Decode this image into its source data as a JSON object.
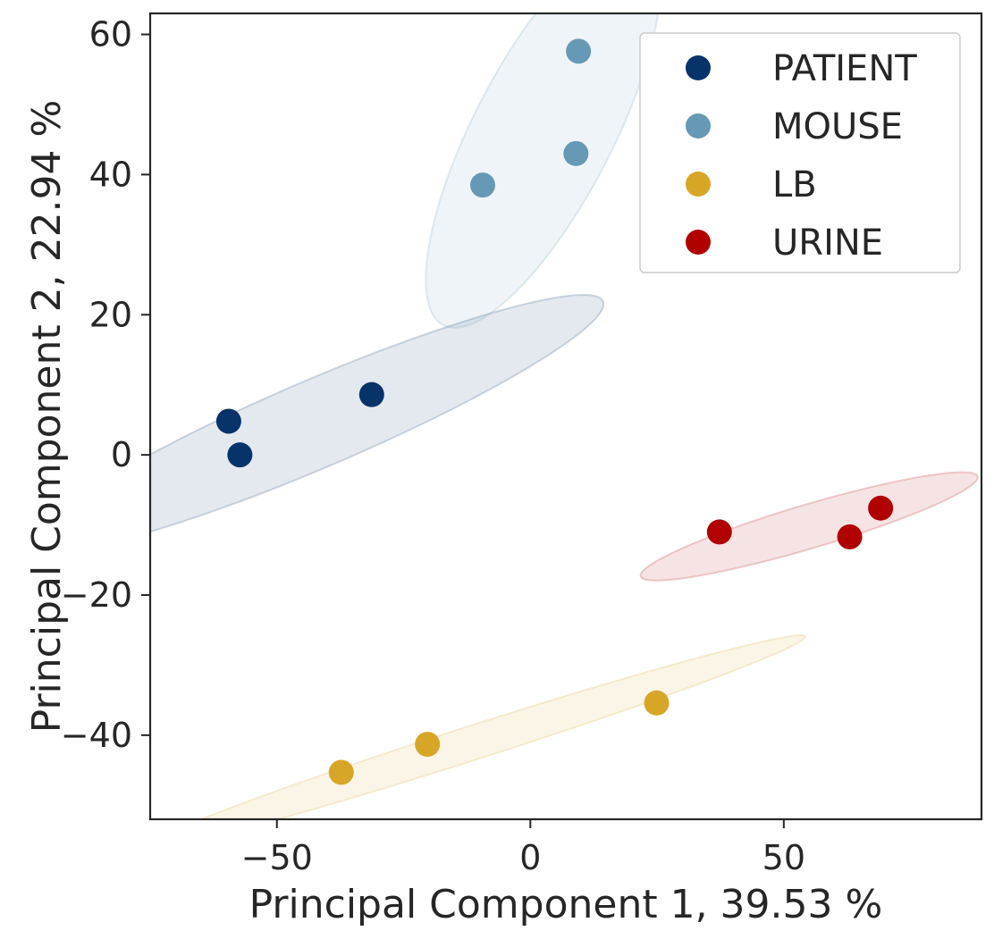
{
  "chart_data": {
    "type": "scatter",
    "title": "",
    "xlabel": "Principal Component 1, 39.53 %",
    "ylabel": "Principal Component 2, 22.94 %",
    "xlim": [
      -75,
      89
    ],
    "ylim": [
      -52,
      63
    ],
    "xticks": [
      -50,
      0,
      50
    ],
    "yticks": [
      -40,
      -20,
      0,
      20,
      40,
      60
    ],
    "xtick_labels": [
      "−50",
      "0",
      "50"
    ],
    "ytick_labels": [
      "−40",
      "−20",
      "0",
      "20",
      "40",
      "60"
    ],
    "grid": false,
    "legend_position": "top-right",
    "series": [
      {
        "name": "PATIENT",
        "color": "#06336a",
        "points": [
          [
            -59.5,
            4.8
          ],
          [
            -57.3,
            0.0
          ],
          [
            -31.3,
            8.6
          ]
        ],
        "ellipse": {
          "center": [
            -42,
            4.5
          ],
          "semi_major": 59,
          "semi_minor": 6.5,
          "angle_deg": 17
        }
      },
      {
        "name": "MOUSE",
        "color": "#6699b6",
        "points": [
          [
            -9.4,
            38.5
          ],
          [
            9.0,
            43.0
          ],
          [
            9.5,
            57.6
          ]
        ],
        "ellipse": {
          "center": [
            2.5,
            46
          ],
          "semi_major": 34,
          "semi_minor": 12.5,
          "angle_deg": 52
        }
      },
      {
        "name": "LB",
        "color": "#d8a626",
        "points": [
          [
            -37.3,
            -45.3
          ],
          [
            -20.3,
            -41.3
          ],
          [
            24.9,
            -35.4
          ]
        ],
        "ellipse": {
          "center": [
            -11,
            -41
          ],
          "semi_major": 67,
          "semi_minor": 2.5,
          "angle_deg": 13
        }
      },
      {
        "name": "URINE",
        "color": "#b10000",
        "points": [
          [
            37.3,
            -11.0
          ],
          [
            63.0,
            -11.7
          ],
          [
            69.1,
            -7.6
          ]
        ],
        "ellipse": {
          "center": [
            55,
            -10.2
          ],
          "semi_major": 34,
          "semi_minor": 3.2,
          "angle_deg": 12
        }
      }
    ]
  }
}
